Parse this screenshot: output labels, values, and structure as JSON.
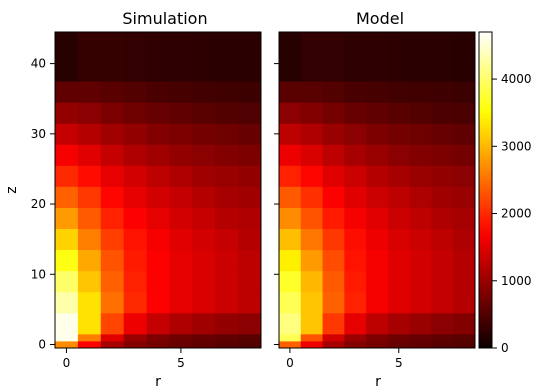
{
  "chart_data": [
    {
      "type": "heatmap",
      "title": "Simulation",
      "xlabel": "r",
      "ylabel": "z",
      "x_range": [
        -0.5,
        8.5
      ],
      "y_range": [
        -0.5,
        44.5
      ],
      "x_ticks": [
        0,
        5
      ],
      "y_ticks": [
        0,
        10,
        20,
        30,
        40
      ],
      "r_bins": 9,
      "z_bins": 15,
      "z_bin_edges": [
        -0.5,
        0.5,
        1.5,
        4.5,
        7.5,
        10.5,
        13.5,
        16.5,
        19.5,
        22.5,
        25.5,
        28.5,
        31.5,
        34.5,
        37.5,
        44.5
      ],
      "note_values": "Estimated values read by color against the shared colorbar (counts)",
      "values": [
        [
          2700,
          1700,
          1100,
          850,
          750,
          650,
          600,
          550,
          500
        ],
        [
          4600,
          2600,
          1500,
          1000,
          800,
          700,
          650,
          600,
          550
        ],
        [
          4600,
          3300,
          2200,
          1600,
          1300,
          1150,
          1050,
          950,
          900
        ],
        [
          4300,
          3300,
          2500,
          2000,
          1700,
          1550,
          1450,
          1350,
          1250
        ],
        [
          4000,
          3100,
          2400,
          1950,
          1700,
          1550,
          1450,
          1350,
          1250
        ],
        [
          3600,
          2900,
          2300,
          1900,
          1700,
          1550,
          1450,
          1350,
          1250
        ],
        [
          3200,
          2600,
          2150,
          1850,
          1650,
          1500,
          1400,
          1300,
          1200
        ],
        [
          2800,
          2350,
          1950,
          1700,
          1550,
          1400,
          1300,
          1200,
          1150
        ],
        [
          2400,
          2100,
          1750,
          1550,
          1400,
          1300,
          1200,
          1100,
          1050
        ],
        [
          2000,
          1800,
          1550,
          1400,
          1250,
          1150,
          1050,
          1000,
          950
        ],
        [
          1650,
          1500,
          1300,
          1150,
          1050,
          950,
          900,
          850,
          800
        ],
        [
          1300,
          1200,
          1050,
          950,
          850,
          800,
          750,
          700,
          650
        ],
        [
          950,
          900,
          800,
          700,
          650,
          600,
          550,
          500,
          480
        ],
        [
          600,
          600,
          550,
          500,
          450,
          420,
          400,
          380,
          350
        ],
        [
          200,
          300,
          300,
          280,
          260,
          250,
          240,
          230,
          220
        ]
      ]
    },
    {
      "type": "heatmap",
      "title": "Model",
      "xlabel": "r",
      "ylabel": "",
      "x_range": [
        -0.5,
        8.5
      ],
      "y_range": [
        -0.5,
        44.5
      ],
      "x_ticks": [
        0,
        5
      ],
      "y_ticks": [],
      "r_bins": 9,
      "z_bins": 15,
      "z_bin_edges": [
        -0.5,
        0.5,
        1.5,
        4.5,
        7.5,
        10.5,
        13.5,
        16.5,
        19.5,
        22.5,
        25.5,
        28.5,
        31.5,
        34.5,
        37.5,
        44.5
      ],
      "note_values": "Estimated values read by color against the shared colorbar (counts)",
      "values": [
        [
          2400,
          1600,
          1100,
          850,
          750,
          650,
          600,
          550,
          500
        ],
        [
          3900,
          2300,
          1400,
          1000,
          800,
          700,
          650,
          600,
          550
        ],
        [
          4100,
          3100,
          2100,
          1550,
          1250,
          1100,
          1000,
          900,
          850
        ],
        [
          3900,
          3100,
          2400,
          1950,
          1650,
          1500,
          1400,
          1300,
          1200
        ],
        [
          3700,
          3000,
          2350,
          1900,
          1650,
          1500,
          1400,
          1300,
          1200
        ],
        [
          3400,
          2800,
          2250,
          1850,
          1650,
          1500,
          1400,
          1300,
          1200
        ],
        [
          3050,
          2550,
          2100,
          1800,
          1600,
          1450,
          1350,
          1250,
          1150
        ],
        [
          2700,
          2300,
          1900,
          1650,
          1500,
          1350,
          1250,
          1150,
          1100
        ],
        [
          2350,
          2050,
          1700,
          1500,
          1350,
          1250,
          1150,
          1050,
          1000
        ],
        [
          1950,
          1750,
          1500,
          1350,
          1200,
          1100,
          1000,
          950,
          900
        ],
        [
          1600,
          1450,
          1250,
          1100,
          1000,
          900,
          850,
          800,
          750
        ],
        [
          1250,
          1150,
          1000,
          900,
          800,
          750,
          700,
          650,
          600
        ],
        [
          900,
          850,
          750,
          650,
          600,
          550,
          500,
          470,
          450
        ],
        [
          550,
          550,
          500,
          450,
          420,
          400,
          380,
          360,
          340
        ],
        [
          200,
          280,
          280,
          260,
          250,
          240,
          230,
          220,
          210
        ]
      ]
    }
  ],
  "colorbar": {
    "colormap": "hot",
    "min": 0,
    "max": 4700,
    "ticks": [
      0,
      1000,
      2000,
      3000,
      4000
    ]
  }
}
